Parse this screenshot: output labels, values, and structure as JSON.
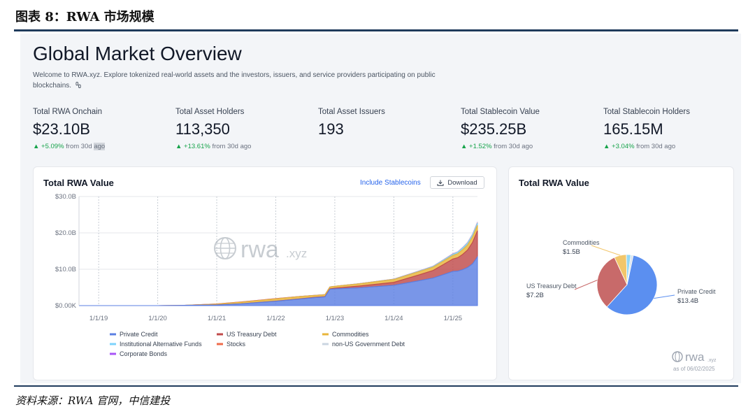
{
  "figure": {
    "title": "图表 8：RWA 市场规模",
    "source": "资料来源：RWA 官网，中信建投"
  },
  "header": {
    "title": "Global Market Overview",
    "welcome": "Welcome to RWA.xyz. Explore tokenized real-world assets and the investors, issuers, and service providers participating on public blockchains.",
    "welcome_icon": "link-icon"
  },
  "stats": [
    {
      "label": "Total RWA Onchain",
      "value": "$23.10B",
      "pct": "▲ +5.09%",
      "from": " from 30d ",
      "tail": "ago"
    },
    {
      "label": "Total Asset Holders",
      "value": "113,350",
      "pct": "▲ +13.61%",
      "from": " from 30d ago",
      "tail": ""
    },
    {
      "label": "Total Asset Issuers",
      "value": "193",
      "pct": "",
      "from": "",
      "tail": ""
    },
    {
      "label": "Total Stablecoin Value",
      "value": "$235.25B",
      "pct": "▲ +1.52%",
      "from": " from 30d ago",
      "tail": ""
    },
    {
      "label": "Total Stablecoin Holders",
      "value": "165.15M",
      "pct": "▲ +3.04%",
      "from": " from 30d ago",
      "tail": ""
    }
  ],
  "colors": {
    "positive": "#16a34a",
    "link": "#2563eb"
  },
  "area_card": {
    "title": "Total RWA Value",
    "stablecoin_link": "Include Stablecoins",
    "download_label": "Download",
    "download_icon": "download-icon",
    "watermark": "rwa",
    "watermark_suffix": ".xyz"
  },
  "pie_card": {
    "title": "Total RWA Value",
    "logo": "rwa",
    "logo_suffix": ".xyz",
    "as_of": "as of 06/02/2025"
  },
  "chart_data": [
    {
      "type": "area",
      "stacked": true,
      "title": "Total RWA Value",
      "x_ticks": [
        "1/1/19",
        "1/1/20",
        "1/1/21",
        "1/1/22",
        "1/1/23",
        "1/1/24",
        "1/1/25"
      ],
      "y_ticks": [
        "$0.00K",
        "$10.0B",
        "$20.0B",
        "$30.0B"
      ],
      "ylim": [
        0,
        30
      ],
      "x_range": [
        "2018-09",
        "2025-06"
      ],
      "grid": true,
      "legend_position": "bottom",
      "x": [
        "2018-09",
        "2019-01",
        "2020-01",
        "2020-06",
        "2021-01",
        "2021-06",
        "2022-01",
        "2022-06",
        "2022-09",
        "2022-11",
        "2022-12",
        "2023-01",
        "2023-06",
        "2024-01",
        "2024-06",
        "2024-09",
        "2025-01",
        "2025-02",
        "2025-03",
        "2025-04",
        "2025-05",
        "2025-06"
      ],
      "series": [
        {
          "name": "Private Credit",
          "color": "#5b7fe3",
          "values": [
            0,
            0,
            0,
            0.05,
            0.2,
            0.5,
            1.2,
            1.8,
            2.2,
            2.4,
            4.5,
            4.6,
            4.9,
            5.6,
            6.8,
            7.6,
            9.4,
            9.5,
            9.9,
            10.5,
            11.5,
            13.4
          ]
        },
        {
          "name": "US Treasury Debt",
          "color": "#c04a4a",
          "values": [
            0,
            0,
            0,
            0,
            0.01,
            0.02,
            0.05,
            0.08,
            0.1,
            0.1,
            0.12,
            0.2,
            0.5,
            0.8,
            1.6,
            2.1,
            3.4,
            3.7,
            4.2,
            4.8,
            5.9,
            7.2
          ]
        },
        {
          "name": "Commodities",
          "color": "#e8b53b",
          "values": [
            0,
            0,
            0,
            0,
            0.2,
            0.4,
            0.6,
            0.6,
            0.5,
            0.5,
            0.5,
            0.5,
            0.6,
            0.8,
            0.9,
            0.9,
            1.0,
            1.1,
            1.3,
            1.4,
            1.5,
            1.5
          ]
        },
        {
          "name": "Institutional Alternative Funds",
          "color": "#7dd3fc",
          "values": [
            0,
            0,
            0,
            0,
            0,
            0,
            0,
            0,
            0,
            0,
            0,
            0,
            0.02,
            0.05,
            0.1,
            0.15,
            0.3,
            0.35,
            0.4,
            0.45,
            0.5,
            0.55
          ]
        },
        {
          "name": "Stocks",
          "color": "#ef6b4a",
          "values": [
            0,
            0,
            0,
            0,
            0.05,
            0.1,
            0.1,
            0.05,
            0.03,
            0.02,
            0.02,
            0.02,
            0.02,
            0.02,
            0.02,
            0.02,
            0.03,
            0.03,
            0.03,
            0.04,
            0.04,
            0.05
          ]
        },
        {
          "name": "non-US Government Debt",
          "color": "#cbd5e1",
          "values": [
            0,
            0,
            0,
            0,
            0,
            0,
            0,
            0,
            0,
            0,
            0,
            0,
            0.01,
            0.02,
            0.05,
            0.08,
            0.1,
            0.12,
            0.15,
            0.18,
            0.2,
            0.25
          ]
        },
        {
          "name": "Corporate Bonds",
          "color": "#a855f7",
          "values": [
            0,
            0,
            0,
            0,
            0,
            0,
            0,
            0.01,
            0.01,
            0.01,
            0.01,
            0.01,
            0.01,
            0.02,
            0.02,
            0.02,
            0.03,
            0.03,
            0.03,
            0.03,
            0.03,
            0.03
          ]
        }
      ]
    },
    {
      "type": "pie",
      "title": "Total RWA Value",
      "slices": [
        {
          "name": "Private Credit",
          "label": "Private Credit",
          "value_label": "$13.4B",
          "value": 13.4,
          "color": "#5b8ff0"
        },
        {
          "name": "US Treasury Debt",
          "label": "US Treasury Debt",
          "value_label": "$7.2B",
          "value": 7.2,
          "color": "#c86a6a"
        },
        {
          "name": "Commodities",
          "label": "Commodities",
          "value_label": "$1.5B",
          "value": 1.5,
          "color": "#f2c66a"
        },
        {
          "name": "Other 1",
          "label": "",
          "value_label": "",
          "value": 0.55,
          "color": "#93d7f5"
        },
        {
          "name": "Other 2",
          "label": "",
          "value_label": "",
          "value": 0.3,
          "color": "#d9e3ee"
        }
      ]
    }
  ]
}
